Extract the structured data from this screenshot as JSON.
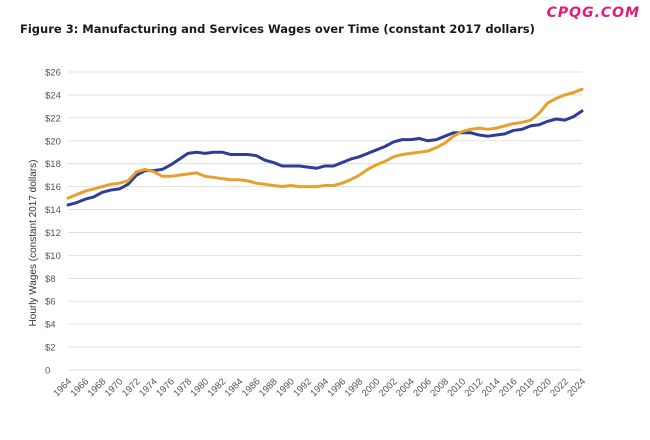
{
  "watermark": "CPQG.COM",
  "chart_data": {
    "type": "line",
    "title": "Figure 3: Manufacturing and Services Wages over Time (constant 2017 dollars)",
    "xlabel": "",
    "ylabel": "Hourly Wages (constant 2017 dollars)",
    "ylim": [
      0,
      26
    ],
    "xlim": [
      1964,
      2024
    ],
    "grid": true,
    "legend": "none",
    "y_ticks": [
      0,
      2,
      4,
      6,
      8,
      10,
      12,
      14,
      16,
      18,
      20,
      22,
      24,
      26
    ],
    "y_tick_labels": [
      "0",
      "$2",
      "$4",
      "$6",
      "$8",
      "$10",
      "$12",
      "$14",
      "$16",
      "$18",
      "$20",
      "$22",
      "$24",
      "$26"
    ],
    "x_ticks": [
      1964,
      1966,
      1968,
      1970,
      1972,
      1974,
      1976,
      1978,
      1980,
      1982,
      1984,
      1986,
      1988,
      1990,
      1992,
      1994,
      1996,
      1998,
      2000,
      2002,
      2004,
      2006,
      2008,
      2010,
      2012,
      2014,
      2016,
      2018,
      2020,
      2022,
      2024
    ],
    "x_tick_labels": [
      "1964",
      "1966",
      "1968",
      "1970",
      "1972",
      "1974",
      "1976",
      "1978",
      "1980",
      "1982",
      "1984",
      "1986",
      "1988",
      "1990",
      "1992",
      "1994",
      "1996",
      "1998",
      "2000",
      "2002",
      "2004",
      "2006",
      "2008",
      "2010",
      "2012",
      "2014",
      "2016",
      "2018",
      "2020",
      "2022",
      "2024"
    ],
    "x": [
      1964,
      1965,
      1966,
      1967,
      1968,
      1969,
      1970,
      1971,
      1972,
      1973,
      1974,
      1975,
      1976,
      1977,
      1978,
      1979,
      1980,
      1981,
      1982,
      1983,
      1984,
      1985,
      1986,
      1987,
      1988,
      1989,
      1990,
      1991,
      1992,
      1993,
      1994,
      1995,
      1996,
      1997,
      1998,
      1999,
      2000,
      2001,
      2002,
      2003,
      2004,
      2005,
      2006,
      2007,
      2008,
      2009,
      2010,
      2011,
      2012,
      2013,
      2014,
      2015,
      2016,
      2017,
      2018,
      2019,
      2020,
      2021,
      2022,
      2023,
      2024
    ],
    "series": [
      {
        "color": "#2e3d98",
        "values": [
          14.4,
          14.6,
          14.9,
          15.1,
          15.5,
          15.7,
          15.8,
          16.2,
          17.0,
          17.4,
          17.4,
          17.5,
          17.9,
          18.4,
          18.9,
          19.0,
          18.9,
          19.0,
          19.0,
          18.8,
          18.8,
          18.8,
          18.7,
          18.3,
          18.1,
          17.8,
          17.8,
          17.8,
          17.7,
          17.6,
          17.8,
          17.8,
          18.1,
          18.4,
          18.6,
          18.9,
          19.2,
          19.5,
          19.9,
          20.1,
          20.1,
          20.2,
          20.0,
          20.1,
          20.4,
          20.7,
          20.7,
          20.7,
          20.5,
          20.4,
          20.5,
          20.6,
          20.9,
          21.0,
          21.3,
          21.4,
          21.7,
          21.9,
          21.8,
          22.1,
          22.6
        ]
      },
      {
        "color": "#e8a02c",
        "values": [
          15.0,
          15.3,
          15.6,
          15.8,
          16.0,
          16.2,
          16.3,
          16.5,
          17.3,
          17.5,
          17.3,
          16.9,
          16.9,
          17.0,
          17.1,
          17.2,
          16.9,
          16.8,
          16.7,
          16.6,
          16.6,
          16.5,
          16.3,
          16.2,
          16.1,
          16.0,
          16.1,
          16.0,
          16.0,
          16.0,
          16.1,
          16.1,
          16.3,
          16.6,
          17.0,
          17.5,
          17.9,
          18.2,
          18.6,
          18.8,
          18.9,
          19.0,
          19.1,
          19.4,
          19.8,
          20.4,
          20.8,
          21.0,
          21.1,
          21.0,
          21.1,
          21.3,
          21.5,
          21.6,
          21.8,
          22.4,
          23.3,
          23.7,
          24.0,
          24.2,
          24.5
        ]
      }
    ]
  }
}
